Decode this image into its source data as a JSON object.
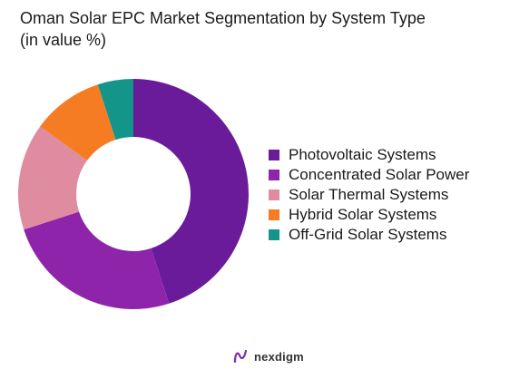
{
  "title": {
    "line1": "Oman Solar EPC Market Segmentation by System Type",
    "line2": "(in value %)"
  },
  "chart_data": {
    "type": "pie",
    "donut": true,
    "title": "Oman Solar EPC Market Segmentation by System Type",
    "subtitle": "(in value %)",
    "legend_position": "right",
    "categories": [
      "Photovoltaic Systems",
      "Concentrated Solar Power",
      "Solar Thermal Systems",
      "Hybrid Solar Systems",
      "Off-Grid Solar Systems"
    ],
    "values": [
      45,
      25,
      15,
      10,
      5
    ],
    "colors": [
      "#6a1b9a",
      "#8e24aa",
      "#e08ca0",
      "#f57c22",
      "#13958a"
    ]
  },
  "logo": {
    "text": "nexdigm",
    "icon": "nexdigm-logo-icon",
    "color": "#7b2fa0"
  }
}
